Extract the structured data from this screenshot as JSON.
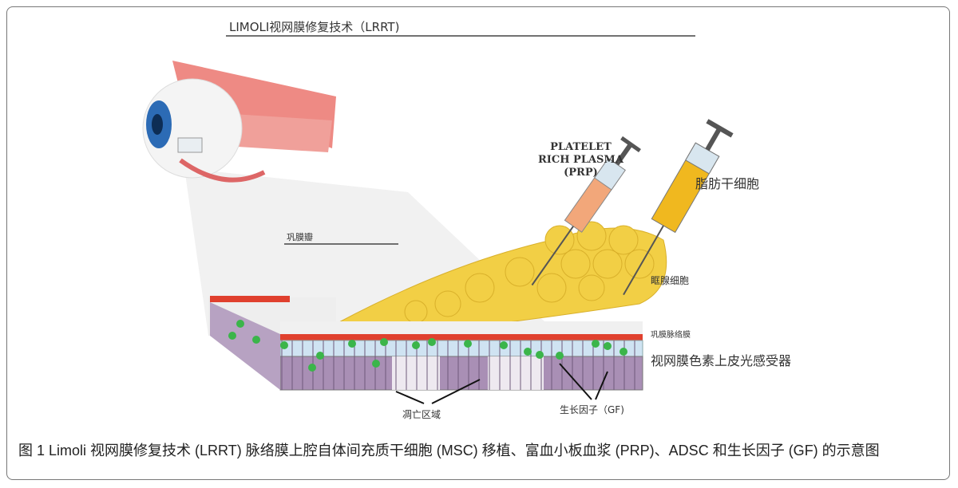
{
  "figure": {
    "title": "LIMOLI视网膜修复技术（LRRT)",
    "labels": {
      "prp": [
        "PLATELET",
        "RICH PLASMA",
        "(PRP)"
      ],
      "adipose_stem_cells": "脂肪干细胞",
      "scleral_flap": "巩膜瓣",
      "orbital_fat_cells": "眶腺细胞",
      "sclera_choroid": "巩膜脉络膜",
      "rpe_photoreceptors": "视网膜色素上皮光感受器",
      "apoptotic_area": "凋亡区域",
      "growth_factor": "生长因子（GF)"
    },
    "colors": {
      "fat": "#f2cf45",
      "syringe_yellow": "#f0b81f",
      "syringe_orange": "#f2a77a",
      "choroid_red": "#e0402e",
      "rpe_purple": "#a98fb5",
      "gf_green": "#3bb54a"
    }
  },
  "caption": "图 1 Limoli 视网膜修复技术 (LRRT) 脉络膜上腔自体间充质干细胞 (MSC) 移植、富血小板血浆 (PRP)、ADSC 和生长因子 (GF) 的示意图"
}
